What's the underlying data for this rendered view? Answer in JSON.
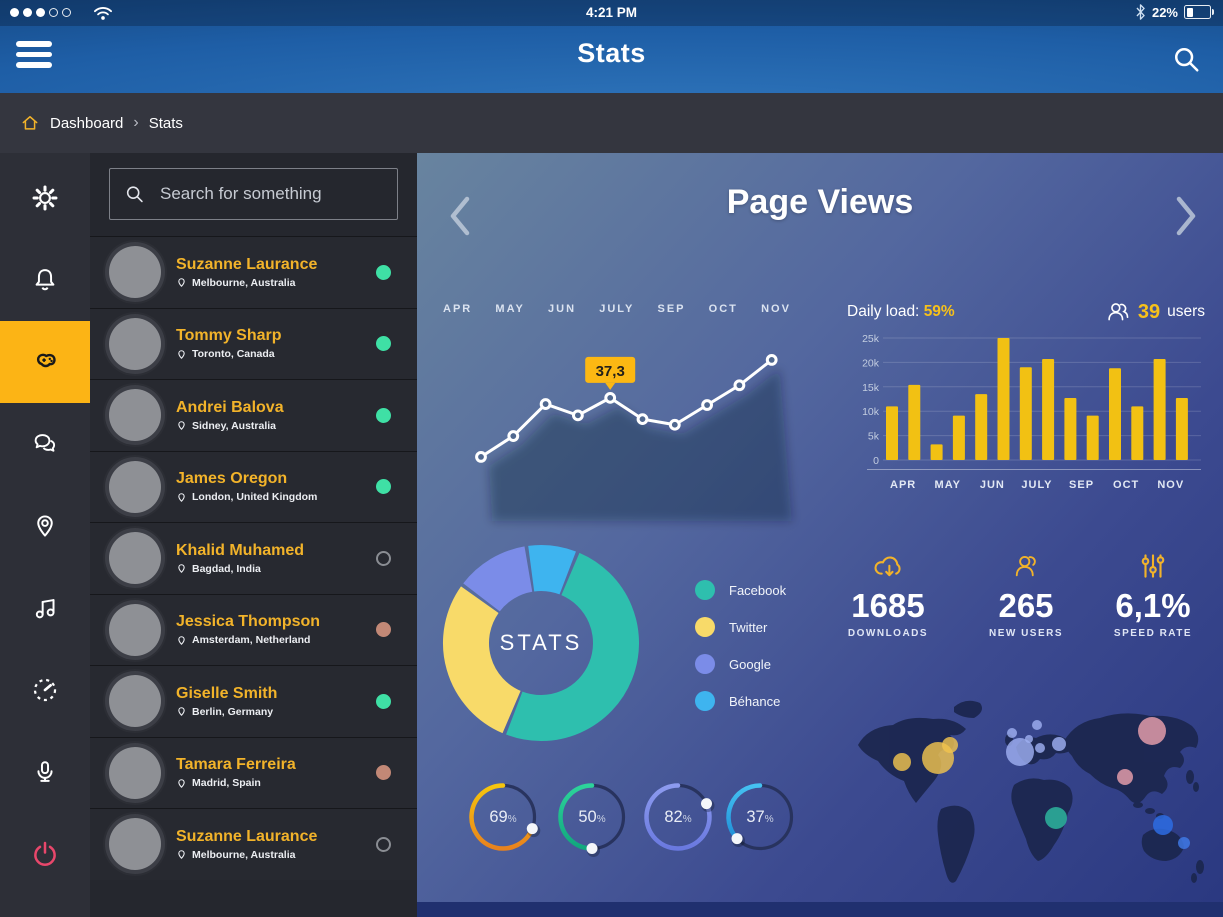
{
  "status_bar": {
    "time": "4:21 PM",
    "battery_percent": "22%",
    "signal_filled": 3,
    "signal_total": 5
  },
  "header": {
    "title": "Stats"
  },
  "breadcrumb": {
    "items": [
      "Dashboard",
      "Stats"
    ],
    "separator": "›"
  },
  "sidebar": {
    "items": [
      {
        "id": "settings",
        "icon": "gear-icon",
        "active": false
      },
      {
        "id": "notifications",
        "icon": "bell-icon",
        "active": false
      },
      {
        "id": "games",
        "icon": "gamepad-icon",
        "active": true
      },
      {
        "id": "messages",
        "icon": "chat-icon",
        "active": false
      },
      {
        "id": "locations",
        "icon": "map-pin-icon",
        "active": false
      },
      {
        "id": "music",
        "icon": "music-note-icon",
        "active": false
      },
      {
        "id": "performance",
        "icon": "speedometer-icon",
        "active": false
      },
      {
        "id": "microphone",
        "icon": "microphone-icon",
        "active": false
      },
      {
        "id": "power",
        "icon": "power-icon",
        "active": false
      }
    ]
  },
  "user_panel": {
    "search_placeholder": "Search for something",
    "users": [
      {
        "name": "Suzanne Laurance",
        "location": "Melbourne, Australia",
        "status": "online"
      },
      {
        "name": "Tommy Sharp",
        "location": "Toronto, Canada",
        "status": "online"
      },
      {
        "name": "Andrei Balova",
        "location": "Sidney, Australia",
        "status": "online"
      },
      {
        "name": "James Oregon",
        "location": "London, United Kingdom",
        "status": "online"
      },
      {
        "name": "Khalid Muhamed",
        "location": "Bagdad, India",
        "status": "offline"
      },
      {
        "name": "Jessica Thompson",
        "location": "Amsterdam, Netherland",
        "status": "away"
      },
      {
        "name": "Giselle Smith",
        "location": "Berlin, Germany",
        "status": "online"
      },
      {
        "name": "Tamara Ferreira",
        "location": "Madrid, Spain",
        "status": "away"
      },
      {
        "name": "Suzanne Laurance",
        "location": "Melbourne, Australia",
        "status": "offline"
      }
    ]
  },
  "main": {
    "title": "Page Views",
    "daily_load": {
      "label": "Daily load:",
      "value": "59%"
    },
    "active_users": {
      "icon": "users-icon",
      "count": "39",
      "label": "users"
    },
    "stats": [
      {
        "icon": "cloud-download-icon",
        "value": "1685",
        "label": "DOWNLOADS"
      },
      {
        "icon": "user-icon",
        "value": "265",
        "label": "NEW USERS"
      },
      {
        "icon": "sliders-icon",
        "value": "6,1%",
        "label": "SPEED RATE"
      }
    ]
  },
  "chart_data": [
    {
      "type": "line",
      "name": "page-views-trend",
      "x_labels": [
        "APR",
        "MAY",
        "JUN",
        "JULY",
        "SEP",
        "OCT",
        "NOV"
      ],
      "values": [
        5.9,
        17,
        34,
        28,
        37.3,
        26,
        23,
        33.5,
        44,
        57.5
      ],
      "annotation": {
        "index": 4,
        "label": "37,3"
      },
      "line_color": "#ffffff",
      "tooltip_color": "#fcb813"
    },
    {
      "type": "bar",
      "name": "monthly-visits",
      "categories": [
        "APR",
        "MAY",
        "JUN",
        "JULY",
        "SEP",
        "OCT",
        "NOV"
      ],
      "values": [
        11000,
        15400,
        3200,
        9100,
        13500,
        25000,
        19000,
        20700,
        12700,
        9100,
        18800,
        11000,
        20700,
        12700
      ],
      "y_ticks": [
        "25k",
        "20k",
        "15k",
        "10k",
        "5k",
        "0"
      ],
      "ylim": [
        0,
        25000
      ],
      "bar_color": "#f2c113",
      "grid": true
    },
    {
      "type": "donut",
      "name": "traffic-sources",
      "center_label": "STATS",
      "start_angle": 22,
      "segments": [
        {
          "label": "Facebook",
          "percent": 50,
          "color": "#2ebfae"
        },
        {
          "label": "Twitter",
          "percent": 29,
          "color": "#f8da69"
        },
        {
          "label": "Google",
          "percent": 12.5,
          "color": "#7b8ce8"
        },
        {
          "label": "Béhance",
          "percent": 8.5,
          "color": "#3eb4ef"
        }
      ]
    },
    {
      "type": "gauge",
      "name": "progress-rings",
      "rings": [
        {
          "percent": 69,
          "color": "#f6c60d",
          "color2": "#e8821d"
        },
        {
          "percent": 50,
          "color": "#2dd39b",
          "color2": "#11a77d"
        },
        {
          "percent": 82,
          "color": "#8d9bef",
          "color2": "#6a79e0"
        },
        {
          "percent": 37,
          "color": "#45c2f2",
          "color2": "#1f8fd8"
        }
      ]
    },
    {
      "type": "bubble-map",
      "name": "visitors-by-region",
      "bubbles": [
        {
          "x": 100,
          "y": 73,
          "r": 16,
          "color": "#f0c34e"
        },
        {
          "x": 64,
          "y": 77,
          "r": 9,
          "color": "#f0c34e"
        },
        {
          "x": 112,
          "y": 60,
          "r": 8,
          "color": "#f0c34e"
        },
        {
          "x": 182,
          "y": 67,
          "r": 14,
          "color": "#9daef0"
        },
        {
          "x": 174,
          "y": 48,
          "r": 5,
          "color": "#9daef0"
        },
        {
          "x": 199,
          "y": 40,
          "r": 5,
          "color": "#9daef0"
        },
        {
          "x": 191,
          "y": 54,
          "r": 4,
          "color": "#9daef0"
        },
        {
          "x": 202,
          "y": 63,
          "r": 5,
          "color": "#9daef0"
        },
        {
          "x": 221,
          "y": 59,
          "r": 7,
          "color": "#9daef0"
        },
        {
          "x": 314,
          "y": 46,
          "r": 14,
          "color": "#e9a0ac"
        },
        {
          "x": 287,
          "y": 92,
          "r": 8,
          "color": "#e9a0ac"
        },
        {
          "x": 218,
          "y": 133,
          "r": 11,
          "color": "#2db9a0"
        },
        {
          "x": 325,
          "y": 140,
          "r": 10,
          "color": "#2d6ee6"
        },
        {
          "x": 346,
          "y": 158,
          "r": 6,
          "color": "#3f7ae8"
        }
      ]
    }
  ],
  "colors": {
    "accent": "#fcb415",
    "online": "#3fe0a5",
    "away": "#c28876",
    "offline": "#8a8d93",
    "user_name": "#f2b32a",
    "power": "#e8476b"
  }
}
